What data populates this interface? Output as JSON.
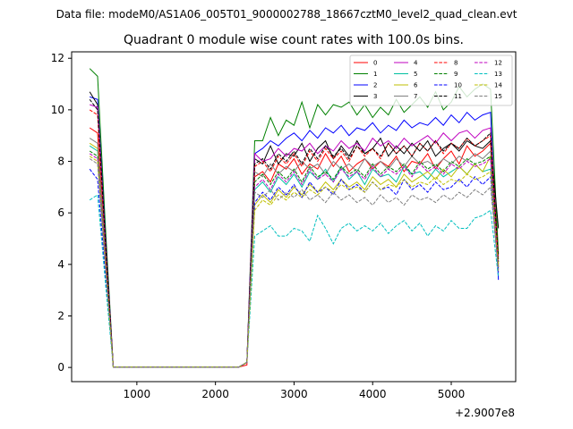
{
  "chart_data": {
    "type": "line",
    "suptitle": "Data file: modeM0/AS1A06_005T01_9000002788_18667cztM0_level2_quad_clean.evt",
    "title": "Quadrant 0 module wise count rates with 100.0s bins.",
    "xlabel": "",
    "ylabel": "",
    "x_offset_label": "+2.9007e8",
    "xlim": [
      170,
      5820
    ],
    "ylim": [
      -0.55,
      12.25
    ],
    "xticks": [
      1000,
      2000,
      3000,
      4000,
      5000
    ],
    "xtick_labels": [
      "1000",
      "2000",
      "3000",
      "4000",
      "5000"
    ],
    "yticks": [
      0,
      2,
      4,
      6,
      8,
      10,
      12
    ],
    "ytick_labels": [
      "0",
      "2",
      "4",
      "6",
      "8",
      "10",
      "12"
    ],
    "grid": false,
    "legend": {
      "placement": "top-right",
      "columns": 4
    },
    "x": [
      400,
      500,
      600,
      700,
      800,
      900,
      1000,
      1100,
      1200,
      1300,
      1400,
      1500,
      1600,
      1700,
      1800,
      1900,
      2000,
      2100,
      2200,
      2300,
      2400,
      2500,
      2600,
      2700,
      2800,
      2900,
      3000,
      3100,
      3200,
      3300,
      3400,
      3500,
      3600,
      3700,
      3800,
      3900,
      4000,
      4100,
      4200,
      4300,
      4400,
      4500,
      4600,
      4700,
      4800,
      4900,
      5000,
      5100,
      5200,
      5300,
      5400,
      5500,
      5600
    ],
    "series": [
      {
        "name": "0",
        "color": "#ff0000",
        "dash": "solid",
        "values": [
          9.3,
          9.1,
          4.5,
          0.02,
          0.02,
          0.02,
          0.02,
          0.02,
          0.02,
          0.02,
          0.02,
          0.02,
          0.02,
          0.02,
          0.02,
          0.02,
          0.02,
          0.02,
          0.02,
          0.02,
          0.1,
          7.4,
          7.6,
          7.2,
          7.9,
          7.7,
          8.1,
          7.5,
          7.9,
          7.7,
          8.3,
          7.8,
          8.2,
          7.6,
          7.9,
          8.1,
          7.7,
          8.0,
          7.8,
          8.2,
          7.6,
          8.0,
          7.9,
          8.3,
          7.7,
          8.1,
          8.4,
          7.9,
          8.6,
          8.2,
          8.4,
          8.7,
          3.9
        ]
      },
      {
        "name": "1",
        "color": "#008000",
        "dash": "solid",
        "values": [
          11.6,
          11.3,
          5.5,
          0.02,
          0.02,
          0.02,
          0.02,
          0.02,
          0.02,
          0.02,
          0.02,
          0.02,
          0.02,
          0.02,
          0.02,
          0.02,
          0.02,
          0.02,
          0.02,
          0.02,
          0.2,
          8.8,
          8.8,
          9.7,
          9.0,
          9.6,
          9.4,
          10.3,
          9.3,
          10.2,
          9.8,
          10.2,
          10.1,
          10.3,
          9.8,
          10.2,
          9.7,
          10.1,
          9.8,
          10.4,
          9.9,
          10.2,
          10.5,
          10.1,
          10.7,
          10.0,
          10.3,
          10.9,
          10.5,
          10.8,
          11.0,
          10.8,
          4.4
        ]
      },
      {
        "name": "2",
        "color": "#0000ff",
        "dash": "solid",
        "values": [
          10.5,
          10.4,
          5.1,
          0.02,
          0.02,
          0.02,
          0.02,
          0.02,
          0.02,
          0.02,
          0.02,
          0.02,
          0.02,
          0.02,
          0.02,
          0.02,
          0.02,
          0.02,
          0.02,
          0.02,
          0.2,
          8.3,
          8.5,
          8.8,
          8.6,
          8.9,
          9.1,
          8.8,
          9.2,
          8.9,
          9.3,
          9.1,
          9.4,
          9.0,
          9.3,
          9.2,
          9.5,
          9.1,
          9.4,
          9.2,
          9.6,
          9.3,
          9.5,
          9.4,
          9.7,
          9.4,
          9.8,
          9.5,
          9.9,
          9.6,
          9.8,
          9.9,
          3.4
        ]
      },
      {
        "name": "3",
        "color": "#000000",
        "dash": "solid",
        "values": [
          10.7,
          10.2,
          5.0,
          0.02,
          0.02,
          0.02,
          0.02,
          0.02,
          0.02,
          0.02,
          0.02,
          0.02,
          0.02,
          0.02,
          0.02,
          0.02,
          0.02,
          0.02,
          0.02,
          0.02,
          0.2,
          8.1,
          7.9,
          8.6,
          7.9,
          8.3,
          8.2,
          8.7,
          8.0,
          8.5,
          8.8,
          8.1,
          8.6,
          8.2,
          8.8,
          8.3,
          8.5,
          8.9,
          8.2,
          8.6,
          8.3,
          8.7,
          8.4,
          8.8,
          8.2,
          8.5,
          8.7,
          8.4,
          8.8,
          8.6,
          8.5,
          8.8,
          5.4
        ]
      },
      {
        "name": "4",
        "color": "#bf00bf",
        "dash": "solid",
        "values": [
          10.2,
          10.1,
          4.9,
          0.02,
          0.02,
          0.02,
          0.02,
          0.02,
          0.02,
          0.02,
          0.02,
          0.02,
          0.02,
          0.02,
          0.02,
          0.02,
          0.02,
          0.02,
          0.02,
          0.02,
          0.2,
          8.3,
          8.0,
          8.1,
          8.5,
          8.2,
          8.5,
          8.4,
          8.7,
          8.3,
          8.6,
          8.4,
          8.8,
          8.5,
          8.7,
          8.4,
          8.9,
          8.6,
          8.8,
          8.5,
          8.9,
          8.6,
          8.8,
          9.0,
          8.7,
          9.1,
          8.8,
          9.1,
          9.2,
          8.9,
          9.2,
          9.3,
          4.0
        ]
      },
      {
        "name": "5",
        "color": "#00bfa0",
        "dash": "solid",
        "values": [
          8.6,
          8.4,
          4.2,
          0.02,
          0.02,
          0.02,
          0.02,
          0.02,
          0.02,
          0.02,
          0.02,
          0.02,
          0.02,
          0.02,
          0.02,
          0.02,
          0.02,
          0.02,
          0.02,
          0.02,
          0.2,
          6.9,
          7.2,
          6.8,
          7.4,
          7.1,
          7.5,
          7.0,
          7.6,
          7.3,
          7.7,
          7.2,
          7.8,
          7.3,
          7.6,
          7.1,
          7.7,
          7.4,
          7.5,
          7.2,
          7.8,
          7.5,
          7.6,
          7.3,
          7.7,
          7.4,
          7.6,
          7.8,
          7.5,
          7.9,
          7.6,
          7.7,
          3.8
        ]
      },
      {
        "name": "6",
        "color": "#bfbf00",
        "dash": "solid",
        "values": [
          8.7,
          8.5,
          4.3,
          0.02,
          0.02,
          0.02,
          0.02,
          0.02,
          0.02,
          0.02,
          0.02,
          0.02,
          0.02,
          0.02,
          0.02,
          0.02,
          0.02,
          0.02,
          0.02,
          0.02,
          0.2,
          6.3,
          6.7,
          6.4,
          6.9,
          6.6,
          7.0,
          6.7,
          7.1,
          6.8,
          7.2,
          6.9,
          7.3,
          7.0,
          7.2,
          6.9,
          7.4,
          7.1,
          7.3,
          7.0,
          7.5,
          7.2,
          7.4,
          7.6,
          7.3,
          7.7,
          7.4,
          7.8,
          7.5,
          7.9,
          7.6,
          8.2,
          4.0
        ]
      },
      {
        "name": "7",
        "color": "#808080",
        "dash": "solid",
        "values": [
          8.9,
          8.7,
          4.4,
          0.02,
          0.02,
          0.02,
          0.02,
          0.02,
          0.02,
          0.02,
          0.02,
          0.02,
          0.02,
          0.02,
          0.02,
          0.02,
          0.02,
          0.02,
          0.02,
          0.02,
          0.2,
          7.6,
          7.4,
          7.9,
          7.5,
          7.8,
          7.6,
          8.0,
          7.7,
          7.9,
          7.5,
          8.0,
          7.7,
          7.9,
          7.6,
          8.1,
          7.8,
          8.0,
          7.7,
          8.1,
          7.8,
          8.2,
          7.9,
          8.0,
          7.8,
          8.1,
          7.9,
          8.2,
          8.0,
          8.3,
          8.1,
          8.4,
          4.1
        ]
      },
      {
        "name": "8",
        "color": "#ff0000",
        "dash": "dashed",
        "values": [
          10.0,
          9.8,
          4.8,
          0.02,
          0.02,
          0.02,
          0.02,
          0.02,
          0.02,
          0.02,
          0.02,
          0.02,
          0.02,
          0.02,
          0.02,
          0.02,
          0.02,
          0.02,
          0.02,
          0.02,
          0.2,
          7.8,
          8.0,
          7.6,
          8.2,
          7.9,
          8.3,
          7.8,
          8.4,
          8.0,
          8.5,
          8.1,
          8.4,
          8.0,
          8.6,
          8.2,
          8.5,
          8.1,
          8.7,
          8.3,
          8.6,
          8.2,
          8.7,
          8.4,
          8.8,
          8.3,
          8.7,
          8.5,
          8.9,
          8.6,
          8.8,
          9.0,
          4.2
        ]
      },
      {
        "name": "9",
        "color": "#008000",
        "dash": "dashed",
        "values": [
          8.4,
          8.2,
          4.1,
          0.02,
          0.02,
          0.02,
          0.02,
          0.02,
          0.02,
          0.02,
          0.02,
          0.02,
          0.02,
          0.02,
          0.02,
          0.02,
          0.02,
          0.02,
          0.02,
          0.02,
          0.2,
          7.2,
          7.5,
          7.1,
          7.6,
          7.3,
          7.7,
          7.2,
          7.8,
          7.4,
          7.6,
          7.3,
          7.8,
          7.5,
          7.7,
          7.4,
          7.9,
          7.5,
          7.8,
          7.6,
          7.9,
          7.5,
          8.0,
          7.7,
          7.9,
          7.6,
          8.0,
          7.8,
          8.1,
          7.9,
          8.0,
          8.2,
          3.9
        ]
      },
      {
        "name": "10",
        "color": "#0000ff",
        "dash": "dashed",
        "values": [
          7.7,
          7.3,
          3.6,
          0.02,
          0.02,
          0.02,
          0.02,
          0.02,
          0.02,
          0.02,
          0.02,
          0.02,
          0.02,
          0.02,
          0.02,
          0.02,
          0.02,
          0.02,
          0.02,
          0.02,
          0.2,
          6.4,
          6.8,
          6.5,
          7.0,
          6.7,
          7.1,
          6.6,
          7.2,
          6.8,
          7.0,
          6.7,
          7.3,
          6.9,
          7.1,
          6.8,
          7.2,
          6.9,
          7.0,
          6.7,
          7.3,
          6.9,
          7.1,
          6.8,
          7.2,
          6.9,
          7.0,
          7.3,
          7.0,
          7.4,
          7.1,
          7.4,
          3.7
        ]
      },
      {
        "name": "11",
        "color": "#000000",
        "dash": "dashed",
        "values": [
          10.4,
          10.0,
          4.9,
          0.02,
          0.02,
          0.02,
          0.02,
          0.02,
          0.02,
          0.02,
          0.02,
          0.02,
          0.02,
          0.02,
          0.02,
          0.02,
          0.02,
          0.02,
          0.02,
          0.02,
          0.2,
          7.9,
          8.1,
          7.7,
          8.3,
          8.0,
          8.4,
          7.9,
          8.5,
          8.1,
          8.6,
          8.2,
          8.5,
          8.1,
          8.6,
          8.3,
          8.5,
          8.2,
          8.7,
          8.3,
          8.6,
          8.2,
          8.7,
          8.4,
          8.8,
          8.4,
          8.7,
          8.5,
          8.9,
          8.6,
          8.8,
          9.1,
          4.1
        ]
      },
      {
        "name": "12",
        "color": "#bf00bf",
        "dash": "dashed",
        "values": [
          8.3,
          8.1,
          4.1,
          0.02,
          0.02,
          0.02,
          0.02,
          0.02,
          0.02,
          0.02,
          0.02,
          0.02,
          0.02,
          0.02,
          0.02,
          0.02,
          0.02,
          0.02,
          0.02,
          0.02,
          0.2,
          7.0,
          7.3,
          6.9,
          7.5,
          7.2,
          7.6,
          7.1,
          7.7,
          7.3,
          7.5,
          7.2,
          7.7,
          7.4,
          7.6,
          7.3,
          7.8,
          7.4,
          7.7,
          7.5,
          7.8,
          7.4,
          7.9,
          7.6,
          7.8,
          7.5,
          7.9,
          7.7,
          8.0,
          7.8,
          7.9,
          8.1,
          3.8
        ]
      },
      {
        "name": "13",
        "color": "#00bfbf",
        "dash": "dashed",
        "values": [
          6.5,
          6.7,
          3.3,
          0.02,
          0.02,
          0.02,
          0.02,
          0.02,
          0.02,
          0.02,
          0.02,
          0.02,
          0.02,
          0.02,
          0.02,
          0.02,
          0.02,
          0.02,
          0.02,
          0.02,
          0.2,
          5.1,
          5.3,
          5.5,
          5.1,
          5.1,
          5.4,
          5.3,
          4.9,
          5.9,
          5.4,
          4.8,
          5.4,
          5.6,
          5.3,
          5.5,
          5.3,
          5.6,
          5.2,
          5.5,
          5.7,
          5.3,
          5.6,
          5.1,
          5.5,
          5.3,
          5.7,
          5.4,
          5.4,
          5.8,
          5.9,
          6.1,
          3.5
        ]
      },
      {
        "name": "14",
        "color": "#bfbf00",
        "dash": "dashed",
        "values": [
          8.2,
          8.0,
          4.0,
          0.02,
          0.02,
          0.02,
          0.02,
          0.02,
          0.02,
          0.02,
          0.02,
          0.02,
          0.02,
          0.02,
          0.02,
          0.02,
          0.02,
          0.02,
          0.02,
          0.02,
          0.2,
          6.1,
          6.5,
          6.3,
          6.7,
          6.5,
          6.8,
          6.6,
          6.9,
          6.7,
          7.0,
          6.8,
          7.1,
          6.9,
          7.0,
          6.8,
          7.2,
          6.9,
          7.1,
          7.0,
          7.3,
          7.0,
          7.2,
          7.1,
          7.4,
          7.1,
          7.3,
          7.2,
          7.5,
          7.3,
          7.4,
          7.6,
          3.9
        ]
      },
      {
        "name": "15",
        "color": "#808080",
        "dash": "dashed",
        "values": [
          8.1,
          7.9,
          4.0,
          0.02,
          0.02,
          0.02,
          0.02,
          0.02,
          0.02,
          0.02,
          0.02,
          0.02,
          0.02,
          0.02,
          0.02,
          0.02,
          0.02,
          0.02,
          0.02,
          0.02,
          0.2,
          6.8,
          6.6,
          6.9,
          6.5,
          6.8,
          6.6,
          6.9,
          6.5,
          6.7,
          6.4,
          6.8,
          6.5,
          6.7,
          6.4,
          6.6,
          6.3,
          6.7,
          6.4,
          6.6,
          6.3,
          6.7,
          6.5,
          6.6,
          6.4,
          6.7,
          6.5,
          6.8,
          6.6,
          6.9,
          6.7,
          7.0,
          3.7
        ]
      }
    ]
  }
}
